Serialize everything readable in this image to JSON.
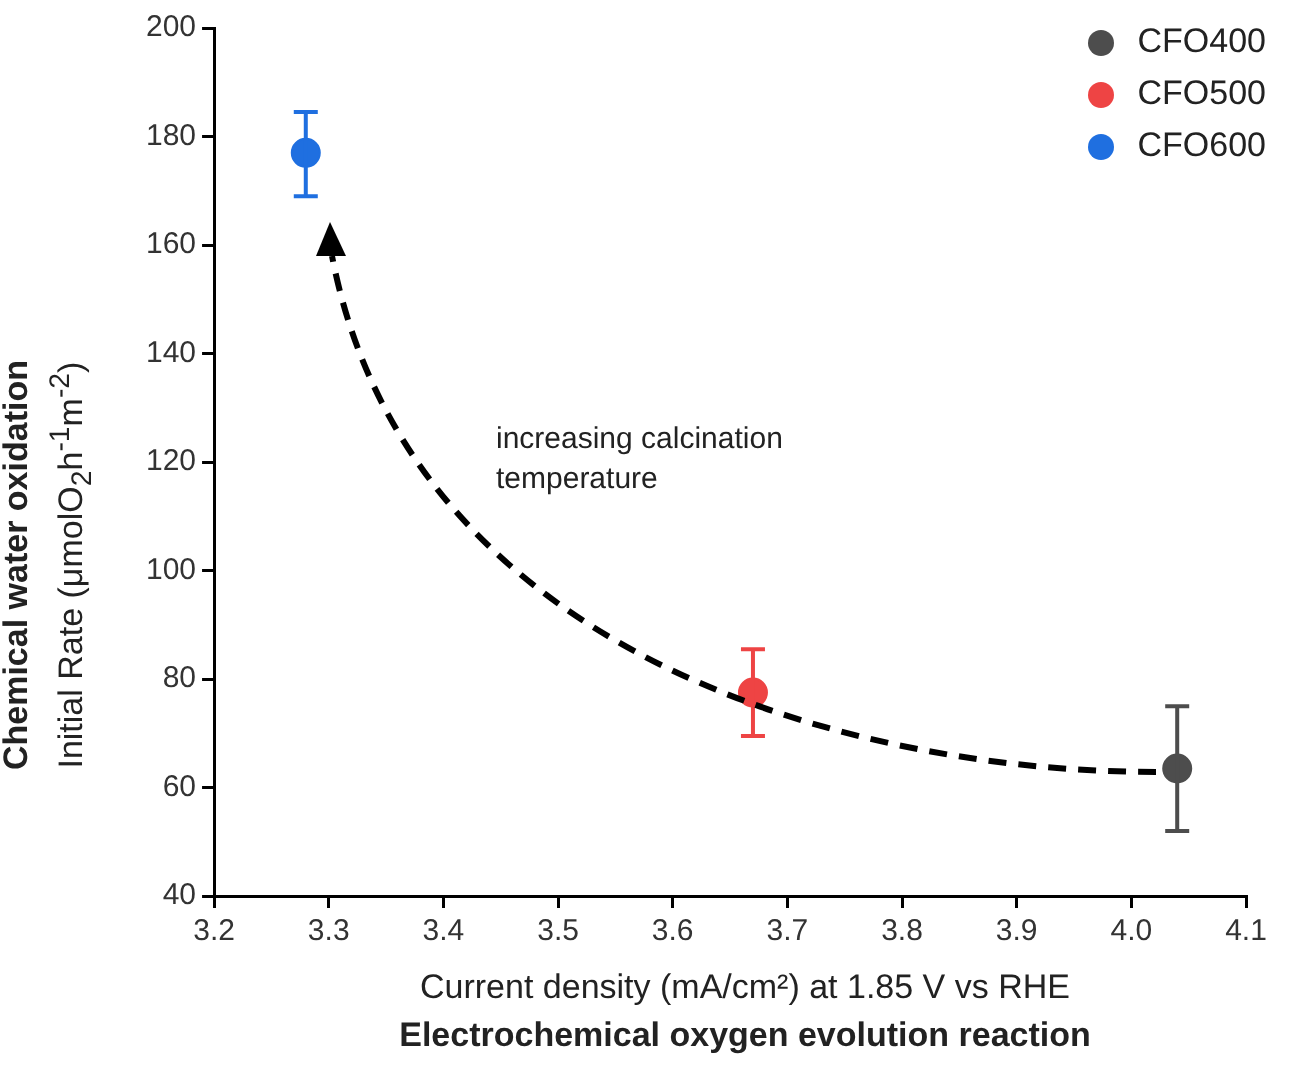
{
  "chart_data": {
    "type": "scatter",
    "xlabel": "Current density (mA/cm²) at 1.85 V vs RHE\nElectrochemical oxygen evolution reaction",
    "ylabel": "Chemical water oxidation\nInitial Rate (μmolO$_{2}$h$^{-1}$m$^{-2}$)",
    "series": [
      {
        "name": "CFO400",
        "color": "#4d4d4d",
        "x": [
          4.04
        ],
        "values": [
          63.5
        ],
        "errors": [
          [
            52,
            75
          ]
        ]
      },
      {
        "name": "CFO500",
        "color": "#ee4444",
        "x": [
          3.67
        ],
        "values": [
          77.5
        ],
        "errors": [
          [
            69.5,
            85.5
          ]
        ]
      },
      {
        "name": "CFO600",
        "color": "#1f6fe0",
        "x": [
          3.28
        ],
        "values": [
          177
        ],
        "errors": [
          [
            169,
            184.5
          ]
        ]
      }
    ],
    "annotations": [
      "increasing calcination temperature"
    ],
    "xlim": [
      3.2,
      4.1
    ],
    "xticks": [
      3.2,
      3.3,
      3.4,
      3.5,
      3.6,
      3.7,
      3.8,
      3.9,
      {
        "value": 4,
        "label": "4.0"
      },
      4.1
    ],
    "ylim": [
      40,
      200
    ],
    "yticks": [
      40,
      60,
      80,
      100,
      120,
      140,
      160,
      180,
      200
    ],
    "grid": false,
    "legend": "top right",
    "marker": "circle"
  }
}
